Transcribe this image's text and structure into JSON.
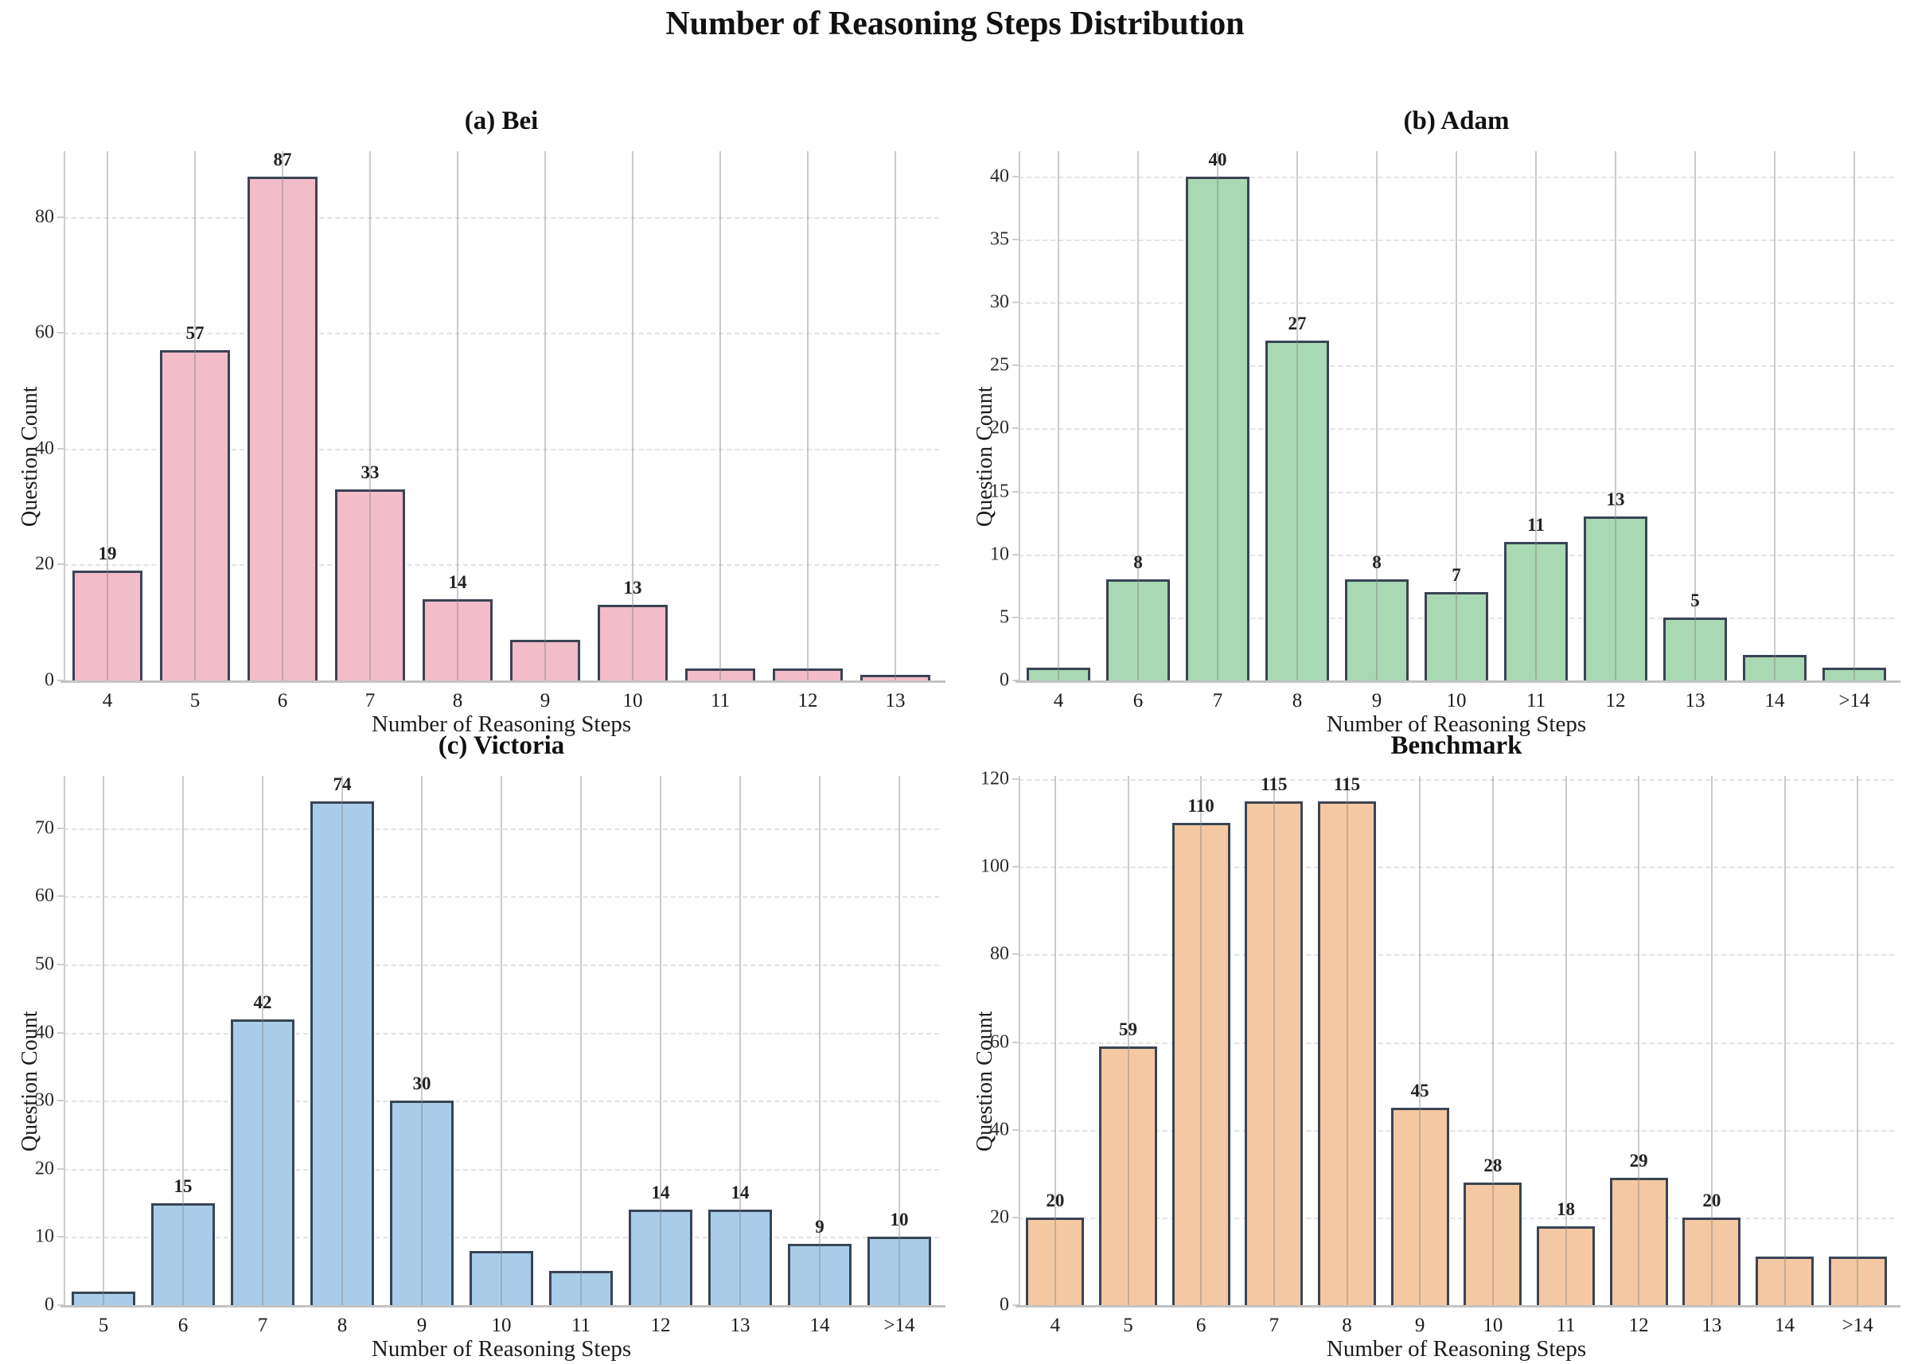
{
  "page_title": "Number of Reasoning Steps Distribution",
  "chart_data": [
    {
      "type": "bar",
      "title": "(a) Bei",
      "xlabel": "Number of Reasoning Steps",
      "ylabel": "Question Count",
      "categories": [
        "4",
        "5",
        "6",
        "7",
        "8",
        "9",
        "10",
        "11",
        "12",
        "13"
      ],
      "values": [
        19,
        57,
        87,
        33,
        14,
        7,
        13,
        2,
        2,
        1
      ],
      "bar_labels": [
        "19",
        "57",
        "87",
        "33",
        "14",
        "",
        "13",
        "",
        "",
        ""
      ],
      "bar_color": "#F2BCC9",
      "bar_edge_color": "#3A4454",
      "yticks": [
        0,
        20,
        40,
        60,
        80
      ],
      "ylim": [
        0,
        91.35
      ],
      "grid": "horizontal-dashed and vertical-solid",
      "legend": "none"
    },
    {
      "type": "bar",
      "title": "(b) Adam",
      "xlabel": "Number of Reasoning Steps",
      "ylabel": "Question Count",
      "categories": [
        "4",
        "6",
        "7",
        "8",
        "9",
        "10",
        "11",
        "12",
        "13",
        "14",
        ">14"
      ],
      "values": [
        1,
        8,
        40,
        27,
        8,
        7,
        11,
        13,
        5,
        2,
        1
      ],
      "bar_labels": [
        "",
        "8",
        "40",
        "27",
        "8",
        "7",
        "11",
        "13",
        "5",
        "",
        ""
      ],
      "bar_color": "#A8D8B4",
      "bar_edge_color": "#3A4454",
      "yticks": [
        0,
        5,
        10,
        15,
        20,
        25,
        30,
        35,
        40
      ],
      "ylim": [
        0,
        42
      ],
      "grid": "horizontal-dashed and vertical-solid",
      "legend": "none"
    },
    {
      "type": "bar",
      "title": "(c) Victoria",
      "xlabel": "Number of Reasoning Steps",
      "ylabel": "Question Count",
      "categories": [
        "5",
        "6",
        "7",
        "8",
        "9",
        "10",
        "11",
        "12",
        "13",
        "14",
        ">14"
      ],
      "values": [
        2,
        15,
        42,
        74,
        30,
        8,
        5,
        14,
        14,
        9,
        10
      ],
      "bar_labels": [
        "",
        "15",
        "42",
        "74",
        "30",
        "",
        "",
        "14",
        "14",
        "9",
        "10"
      ],
      "bar_color": "#A9CDE8",
      "bar_edge_color": "#3A4454",
      "yticks": [
        0,
        10,
        20,
        30,
        40,
        50,
        60,
        70
      ],
      "ylim": [
        0,
        77.7
      ],
      "grid": "horizontal-dashed and vertical-solid",
      "legend": "none"
    },
    {
      "type": "bar",
      "title": "Benchmark",
      "xlabel": "Number of Reasoning Steps",
      "ylabel": "Question Count",
      "categories": [
        "4",
        "5",
        "6",
        "7",
        "8",
        "9",
        "10",
        "11",
        "12",
        "13",
        "14",
        ">14"
      ],
      "values": [
        20,
        59,
        110,
        115,
        115,
        45,
        28,
        18,
        29,
        20,
        11,
        11
      ],
      "bar_labels": [
        "20",
        "59",
        "110",
        "115",
        "115",
        "45",
        "28",
        "18",
        "29",
        "20",
        "",
        ""
      ],
      "bar_color": "#F4C8A2",
      "bar_edge_color": "#3A4454",
      "yticks": [
        0,
        20,
        40,
        60,
        80,
        100,
        120
      ],
      "ylim": [
        0,
        120.75
      ],
      "grid": "horizontal-dashed and vertical-solid",
      "legend": "none"
    }
  ]
}
